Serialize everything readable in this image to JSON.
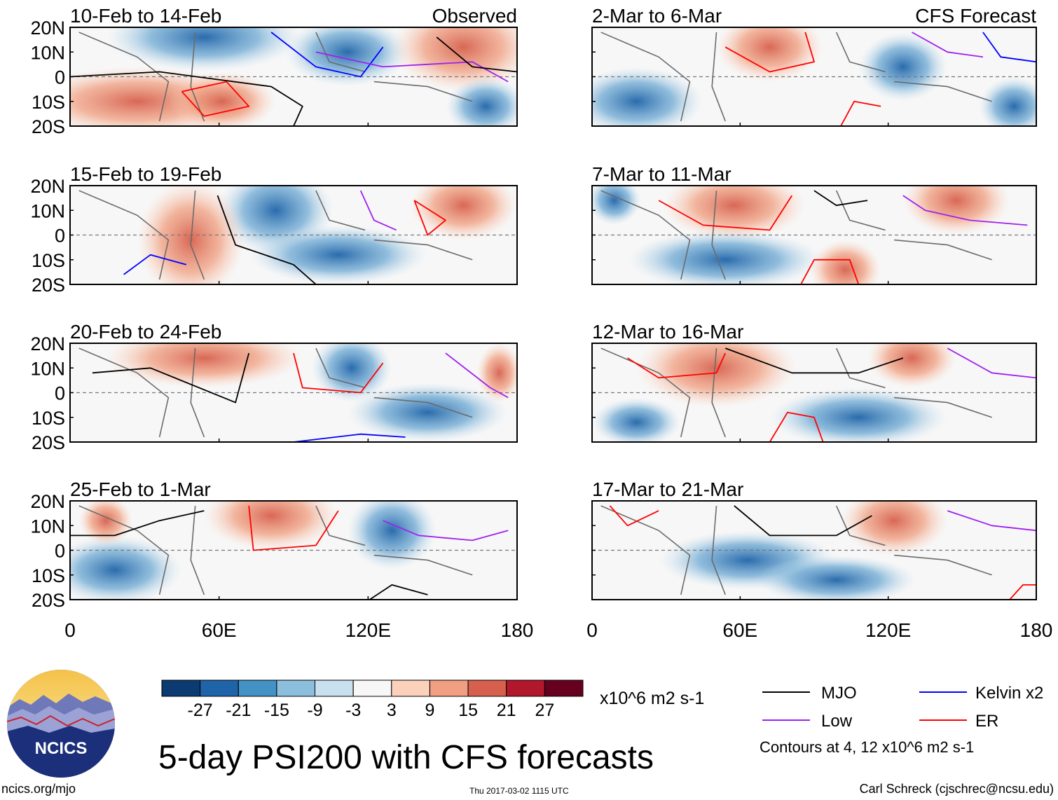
{
  "chart_data": {
    "type": "heatmap",
    "title": "5-day PSI200 with CFS forecasts",
    "units": "x10^6 m2 s-1",
    "observed_label": "Observed",
    "forecast_label": "CFS Forecast",
    "x_ticks": [
      "0",
      "60E",
      "120E",
      "180"
    ],
    "x_range": [
      0,
      180
    ],
    "y_ticks": [
      "20N",
      "10N",
      "0",
      "10S",
      "20S"
    ],
    "y_range": [
      -20,
      20
    ],
    "colorbar": {
      "levels": [
        "-27",
        "-21",
        "-15",
        "-9",
        "-3",
        "3",
        "9",
        "15",
        "21",
        "27"
      ],
      "colors": [
        "#0b3b72",
        "#1f64a8",
        "#4292c6",
        "#8bbfdd",
        "#c9e1ef",
        "#f7f7f7",
        "#fcd1bc",
        "#f09f80",
        "#d6604d",
        "#b2182b",
        "#67001f"
      ]
    },
    "panels": [
      {
        "period": "10-Feb to 14-Feb",
        "source": "Observed"
      },
      {
        "period": "15-Feb to 19-Feb",
        "source": "Observed"
      },
      {
        "period": "20-Feb to 24-Feb",
        "source": "Observed"
      },
      {
        "period": "25-Feb to 1-Mar",
        "source": "Observed"
      },
      {
        "period": "2-Mar to 6-Mar",
        "source": "CFS Forecast"
      },
      {
        "period": "7-Mar to 11-Mar",
        "source": "CFS Forecast"
      },
      {
        "period": "12-Mar to 16-Mar",
        "source": "CFS Forecast"
      },
      {
        "period": "17-Mar to 21-Mar",
        "source": "CFS Forecast"
      }
    ],
    "legend": {
      "items": [
        {
          "label": "MJO",
          "color": "#000000"
        },
        {
          "label": "Kelvin x2",
          "color": "#0000ff"
        },
        {
          "label": "Low",
          "color": "#a020f0"
        },
        {
          "label": "ER",
          "color": "#ff0000"
        }
      ],
      "note": "Contours at 4, 12 x10^6 m2 s-1"
    }
  },
  "footer": {
    "logo_text": "NCICS",
    "site": "ncics.org/mjo",
    "timestamp": "Thu 2017-03-02 1115 UTC",
    "credit": "Carl Schreck (cjschrec@ncsu.edu)"
  }
}
